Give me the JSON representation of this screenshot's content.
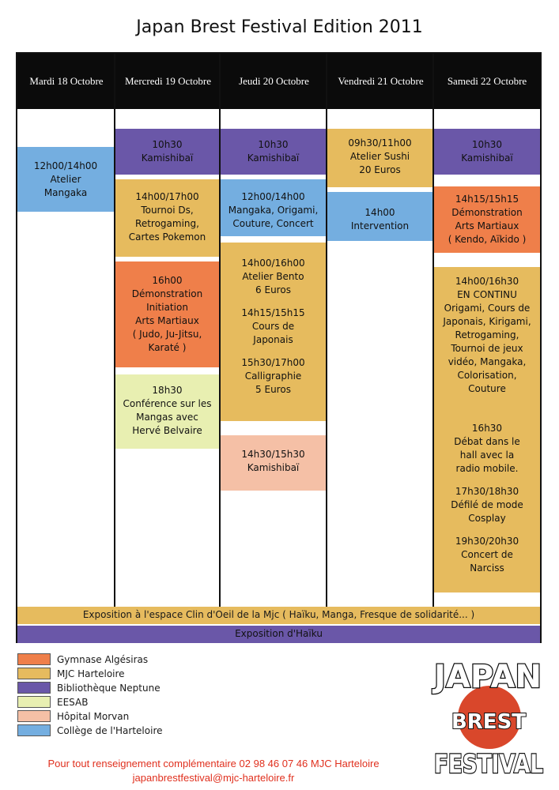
{
  "title": "Japan Brest Festival  Edition 2011",
  "days": [
    "Mardi 18 Octobre",
    "Mercredi 19 Octobre",
    "Jeudi 20 Octobre",
    "Vendredi 21 Octobre",
    "Samedi 22 Octobre"
  ],
  "colors": {
    "gymnase": "#ef7f4a",
    "mjc": "#e6bb5e",
    "neptune": "#6a57a8",
    "eesab": "#e8efb1",
    "morvan": "#f5c0a6",
    "college": "#74aee0"
  },
  "events": {
    "mardi_atelier": "12h00/14h00\nAtelier\nMangaka",
    "mercredi_kamishibai": "10h30\nKamishibaï",
    "mercredi_tournoi": "14h00/17h00\nTournoi Ds,\nRetrogaming,\nCartes Pokemon",
    "mercredi_demo": "16h00\nDémonstration\nInitiation\nArts Martiaux\n( Judo, Ju-Jitsu,\nKaraté )",
    "mercredi_conference": "18h30\nConférence sur les\nMangas avec\nHervé Belvaire",
    "jeudi_kamishibai": "10h30\nKamishibaï",
    "jeudi_mangaka": "12h00/14h00\nMangaka, Origami,\nCouture, Concert",
    "jeudi_bento": "14h00/16h00\nAtelier Bento\n6 Euros",
    "jeudi_cours": "14h15/15h15\nCours de\nJaponais",
    "jeudi_calligraphie": "15h30/17h00\nCalligraphie\n5 Euros",
    "jeudi_kamishibai2": "14h30/15h30\nKamishibaï",
    "vendredi_sushi": "09h30/11h00\nAtelier Sushi\n20 Euros",
    "vendredi_intervention": "14h00\nIntervention",
    "samedi_kamishibai": "10h30\nKamishibaï",
    "samedi_demo": "14h15/15h15\nDémonstration\nArts Martiaux\n( Kendo, Aïkido )",
    "samedi_continu": "14h00/16h30\nEN CONTINU\nOrigami, Cours de\nJaponais, Kirigami,\nRetrogaming,\nTournoi de jeux\nvidéo, Mangaka,\nColorisation,\nCouture",
    "samedi_debat": "16h30\nDébat dans le\nhall avec la\nradio mobile.",
    "samedi_defile": "17h30/18h30\nDéfilé de mode\nCosplay",
    "samedi_concert": "19h30/20h30\nConcert de\nNarciss"
  },
  "expositions": {
    "clin": "Exposition à l'espace Clin d'Oeil de la Mjc ( Haïku, Manga, Fresque de solidarité... )",
    "haiku": "Exposition d'Haïku"
  },
  "legend": [
    {
      "label": "Gymnase Algésiras",
      "color": "#ef7f4a"
    },
    {
      "label": "MJC Harteloire",
      "color": "#e6bb5e"
    },
    {
      "label": "Bibliothèque Neptune",
      "color": "#6a57a8"
    },
    {
      "label": "EESAB",
      "color": "#e8efb1"
    },
    {
      "label": "Hôpital Morvan",
      "color": "#f5c0a6"
    },
    {
      "label": "Collège de l'Harteloire",
      "color": "#74aee0"
    }
  ],
  "contact": {
    "line1": "Pour tout renseignement complémentaire 02 98 46 07 46  MJC Harteloire",
    "line2": "japanbrestfestival@mjc-harteloire.fr"
  },
  "logo": {
    "word1": "JAPAN",
    "word2": "BREST",
    "word3": "FESTIVAL"
  }
}
